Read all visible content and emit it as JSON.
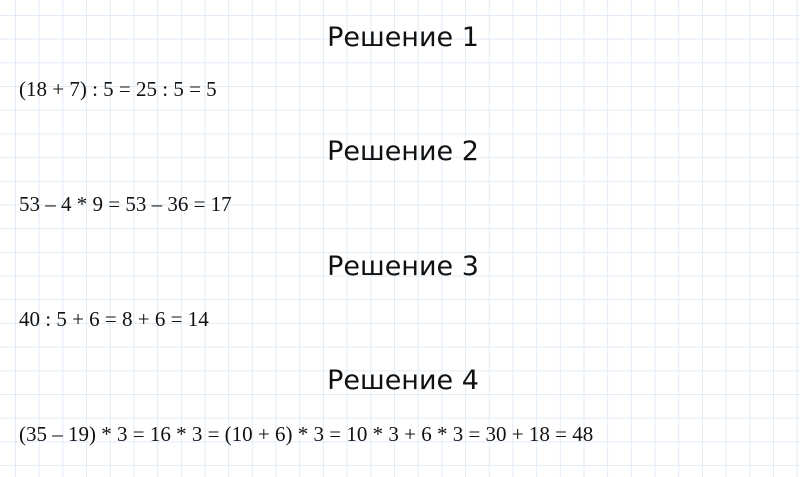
{
  "solutions": [
    {
      "title": "Решение 1",
      "equation": "(18 + 7) : 5 = 25 : 5 = 5"
    },
    {
      "title": "Решение 2",
      "equation": "53 – 4 * 9 = 53 – 36 = 17"
    },
    {
      "title": "Решение 3",
      "equation": "40 : 5 + 6 = 8 + 6 = 14"
    },
    {
      "title": "Решение 4",
      "equation": "(35 – 19) * 3 = 16 * 3 = (10 + 6) * 3 = 10 * 3 + 6 * 3 = 30 + 18 = 48"
    }
  ]
}
